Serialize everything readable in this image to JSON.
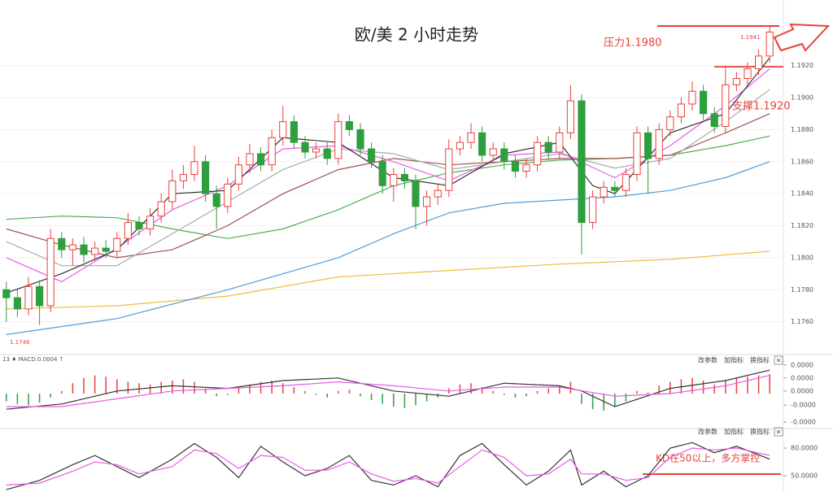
{
  "chart_data": [
    {
      "type": "candlestick",
      "title": "欧/美 2 小时走势",
      "annotations": [
        "压力1.1980",
        "支撑1.1920",
        "1.1941",
        "1.1746"
      ],
      "up_color": "#e8413c",
      "down_color": "#2e9e3e",
      "grid": true,
      "xlim": [
        -0.5,
        69.5
      ],
      "ylim": [
        1.174,
        1.1961
      ],
      "yticks": [
        {
          "value": 1.176,
          "label": "1.1760"
        },
        {
          "value": 1.178,
          "label": "1.1780"
        },
        {
          "value": 1.18,
          "label": "1.1800"
        },
        {
          "value": 1.182,
          "label": "1.1820"
        },
        {
          "value": 1.184,
          "label": "1.1840"
        },
        {
          "value": 1.186,
          "label": "1.1860"
        },
        {
          "value": 1.188,
          "label": "1.1880"
        },
        {
          "value": 1.19,
          "label": "1.1900"
        },
        {
          "value": 1.192,
          "label": "1.1920"
        }
      ],
      "open": [
        1.178,
        1.1775,
        1.1768,
        1.1782,
        1.177,
        1.1812,
        1.1805,
        1.1808,
        1.1802,
        1.1806,
        1.1804,
        1.1812,
        1.1822,
        1.1818,
        1.1826,
        1.1835,
        1.1848,
        1.1852,
        1.186,
        1.184,
        1.1832,
        1.1846,
        1.1858,
        1.1865,
        1.1858,
        1.1875,
        1.1885,
        1.1872,
        1.1866,
        1.1868,
        1.1862,
        1.1885,
        1.188,
        1.1868,
        1.186,
        1.1845,
        1.1852,
        1.1848,
        1.1832,
        1.1838,
        1.1842,
        1.1868,
        1.1872,
        1.1878,
        1.1864,
        1.1868,
        1.186,
        1.1854,
        1.1858,
        1.1872,
        1.1866,
        1.1878,
        1.1898,
        1.1822,
        1.1838,
        1.1844,
        1.1842,
        1.1852,
        1.1878,
        1.1862,
        1.188,
        1.1888,
        1.1896,
        1.1904,
        1.189,
        1.1882,
        1.1908,
        1.1912,
        1.1918,
        1.1926
      ],
      "high": [
        1.1785,
        1.178,
        1.1788,
        1.1786,
        1.1818,
        1.1816,
        1.1812,
        1.1813,
        1.181,
        1.1811,
        1.1816,
        1.1828,
        1.1826,
        1.1831,
        1.184,
        1.1855,
        1.1858,
        1.187,
        1.1864,
        1.1845,
        1.185,
        1.1863,
        1.1871,
        1.1869,
        1.188,
        1.1895,
        1.1889,
        1.1876,
        1.1872,
        1.1872,
        1.189,
        1.1889,
        1.1884,
        1.1872,
        1.1864,
        1.1856,
        1.1856,
        1.1852,
        1.1842,
        1.1846,
        1.1874,
        1.1876,
        1.1884,
        1.1882,
        1.1872,
        1.1872,
        1.1864,
        1.1862,
        1.1876,
        1.1876,
        1.1882,
        1.1908,
        1.1902,
        1.1842,
        1.1848,
        1.1848,
        1.1856,
        1.1882,
        1.1882,
        1.1884,
        1.1892,
        1.19,
        1.191,
        1.1908,
        1.1894,
        1.192,
        1.1916,
        1.1922,
        1.193,
        1.1945
      ],
      "low": [
        1.176,
        1.1763,
        1.1764,
        1.1758,
        1.1766,
        1.18,
        1.1795,
        1.1797,
        1.1798,
        1.18,
        1.18,
        1.1808,
        1.1814,
        1.1814,
        1.1822,
        1.183,
        1.1843,
        1.1848,
        1.1835,
        1.1818,
        1.1828,
        1.1842,
        1.1853,
        1.1854,
        1.1854,
        1.187,
        1.1868,
        1.1862,
        1.1862,
        1.1858,
        1.1858,
        1.1876,
        1.1864,
        1.1856,
        1.184,
        1.1835,
        1.1843,
        1.1818,
        1.182,
        1.1833,
        1.1838,
        1.1864,
        1.1868,
        1.186,
        1.186,
        1.1855,
        1.185,
        1.185,
        1.1854,
        1.1862,
        1.1862,
        1.1874,
        1.1802,
        1.1818,
        1.1834,
        1.1838,
        1.1838,
        1.1848,
        1.184,
        1.1858,
        1.1876,
        1.1884,
        1.1892,
        1.1886,
        1.1878,
        1.1878,
        1.1904,
        1.1908,
        1.1914,
        1.1922
      ],
      "close": [
        1.1775,
        1.1768,
        1.1782,
        1.177,
        1.1812,
        1.1805,
        1.1808,
        1.1802,
        1.1806,
        1.1804,
        1.1812,
        1.1822,
        1.1818,
        1.1826,
        1.1835,
        1.1848,
        1.1852,
        1.186,
        1.184,
        1.1832,
        1.1846,
        1.1858,
        1.1865,
        1.1858,
        1.1875,
        1.1885,
        1.1872,
        1.1866,
        1.1868,
        1.1862,
        1.1885,
        1.188,
        1.1868,
        1.186,
        1.1845,
        1.1852,
        1.1848,
        1.1832,
        1.1838,
        1.1842,
        1.1868,
        1.1872,
        1.1878,
        1.1864,
        1.1868,
        1.186,
        1.1854,
        1.1858,
        1.1872,
        1.1866,
        1.1878,
        1.1898,
        1.1822,
        1.1838,
        1.1844,
        1.1842,
        1.1852,
        1.1878,
        1.1862,
        1.188,
        1.1888,
        1.1896,
        1.1904,
        1.189,
        1.1882,
        1.1908,
        1.1912,
        1.1918,
        1.1926,
        1.1941
      ],
      "series": [
        {
          "color": "#f5b942",
          "x": [
            0,
            10,
            20,
            30,
            40,
            50,
            60,
            69
          ],
          "values": [
            1.1768,
            1.177,
            1.1776,
            1.1788,
            1.1792,
            1.1796,
            1.1799,
            1.1804
          ]
        },
        {
          "color": "#4a9ee0",
          "x": [
            0,
            10,
            20,
            30,
            35,
            40,
            45,
            50,
            55,
            60,
            65,
            69
          ],
          "values": [
            1.1752,
            1.1762,
            1.178,
            1.18,
            1.1815,
            1.1828,
            1.1834,
            1.1836,
            1.1838,
            1.1842,
            1.185,
            1.186
          ]
        },
        {
          "color": "#4caf50",
          "x": [
            0,
            5,
            10,
            15,
            20,
            25,
            30,
            35,
            40,
            45,
            50,
            55,
            60,
            65,
            69
          ],
          "values": [
            1.1824,
            1.1826,
            1.1825,
            1.1818,
            1.1812,
            1.1818,
            1.183,
            1.1845,
            1.1853,
            1.1858,
            1.1861,
            1.1862,
            1.1864,
            1.187,
            1.1876
          ]
        },
        {
          "color": "#a0524d",
          "x": [
            0,
            5,
            10,
            15,
            20,
            25,
            30,
            35,
            40,
            45,
            50,
            55,
            60,
            65,
            69
          ],
          "values": [
            1.1818,
            1.1808,
            1.18,
            1.1805,
            1.182,
            1.184,
            1.1855,
            1.1862,
            1.1858,
            1.186,
            1.1862,
            1.1862,
            1.1864,
            1.1878,
            1.189
          ]
        },
        {
          "color": "#aaaaaa",
          "x": [
            0,
            5,
            10,
            15,
            20,
            25,
            30,
            35,
            40,
            45,
            50,
            55,
            60,
            65,
            69
          ],
          "values": [
            1.181,
            1.1795,
            1.1795,
            1.1815,
            1.1835,
            1.1855,
            1.1868,
            1.1865,
            1.1855,
            1.186,
            1.1865,
            1.1856,
            1.1862,
            1.1885,
            1.1905
          ]
        },
        {
          "color": "#e65ce6",
          "x": [
            0,
            5,
            10,
            15,
            20,
            25,
            30,
            35,
            40,
            45,
            50,
            55,
            60,
            65,
            69
          ],
          "values": [
            1.18,
            1.1785,
            1.1806,
            1.183,
            1.1845,
            1.1868,
            1.187,
            1.186,
            1.1848,
            1.1864,
            1.1866,
            1.185,
            1.187,
            1.1895,
            1.1918
          ]
        },
        {
          "color": "#333333",
          "x": [
            0,
            5,
            10,
            15,
            20,
            25,
            30,
            35,
            40,
            45,
            50,
            53,
            55,
            60,
            65,
            69
          ],
          "values": [
            1.1778,
            1.179,
            1.1805,
            1.184,
            1.1842,
            1.1875,
            1.1872,
            1.185,
            1.1845,
            1.1865,
            1.1872,
            1.1845,
            1.184,
            1.1878,
            1.189,
            1.1925
          ]
        }
      ]
    },
    {
      "type": "macd",
      "header": "13 ♦ MACD:0.0004 ↑",
      "buttons": [
        "改参数",
        "加指标",
        "换指标",
        "×"
      ],
      "up_color": "#e8413c",
      "down_color": "#2e9e3e",
      "xlim": [
        -0.5,
        69.5
      ],
      "ylim": [
        -2.75e-05,
        2.75e-05
      ],
      "yticks": [
        {
          "value": 2.2e-05,
          "label": "0.0000"
        },
        {
          "value": 1.2e-05,
          "label": "0.0000"
        },
        {
          "value": 2e-06,
          "label": "0.0000"
        },
        {
          "value": -8.8e-06,
          "label": "-0.0000"
        },
        {
          "value": -2.19e-05,
          "label": "-0.0000"
        }
      ],
      "values": [
        -6e-06,
        -8e-06,
        -9e-06,
        -7e-06,
        -3e-06,
        2e-06,
        8e-06,
        1.2e-05,
        1.4e-05,
        1.3e-05,
        1.1e-05,
        9e-06,
        8e-06,
        7e-06,
        9e-06,
        1e-05,
        1.1e-05,
        9e-06,
        4e-06,
        -2e-06,
        -1e-06,
        4e-06,
        7e-06,
        9e-06,
        1e-05,
        8e-06,
        5e-06,
        2e-06,
        -1e-06,
        -3e-06,
        2e-06,
        3e-06,
        -2e-06,
        -5e-06,
        -8e-06,
        -1e-05,
        -1.1e-05,
        -9e-06,
        -6e-06,
        -3e-06,
        4e-06,
        7e-06,
        8e-06,
        5e-06,
        2e-06,
        -1e-06,
        -3e-06,
        -2e-06,
        2e-06,
        4e-06,
        6e-06,
        9e-06,
        -8e-06,
        -1.2e-05,
        -1.3e-05,
        -1e-05,
        -6e-06,
        2e-06,
        1e-06,
        6e-06,
        9e-06,
        1.1e-05,
        1.2e-05,
        1e-05,
        7e-06,
        1e-05,
        1.2e-05,
        1.3e-05,
        1.4e-05,
        1.5e-05
      ],
      "series": [
        {
          "color": "#333333",
          "x": [
            0,
            5,
            10,
            15,
            20,
            25,
            30,
            35,
            40,
            45,
            50,
            52,
            55,
            60,
            65,
            69
          ],
          "values": [
            -1.2e-05,
            -8e-06,
            2e-06,
            6e-06,
            4e-06,
            1e-05,
            1.2e-05,
            2e-06,
            -2e-06,
            8e-06,
            6e-06,
            2e-06,
            -1e-05,
            4e-06,
            1e-05,
            1.8e-05
          ]
        },
        {
          "color": "#e65ce6",
          "x": [
            0,
            5,
            10,
            15,
            20,
            25,
            30,
            35,
            40,
            45,
            50,
            55,
            60,
            65,
            69
          ],
          "values": [
            -1e-05,
            -1e-05,
            -4e-06,
            2e-06,
            4e-06,
            6e-06,
            9e-06,
            6e-06,
            2e-06,
            5e-06,
            5e-06,
            -2e-06,
            0,
            6e-06,
            1.4e-05
          ]
        }
      ]
    },
    {
      "type": "line",
      "buttons": [
        "改参数",
        "加指标",
        "换指标",
        "×"
      ],
      "annotation": "KD在50以上，多方掌控",
      "xlim": [
        -0.5,
        69.5
      ],
      "ylim": [
        32.4,
        100.3
      ],
      "yticks": [
        {
          "value": 80,
          "label": "80.0000"
        },
        {
          "value": 50,
          "label": "50.0000"
        }
      ],
      "series": [
        {
          "color": "#333333",
          "x": [
            0,
            3,
            6,
            8,
            10,
            12,
            15,
            17,
            19,
            21,
            23,
            25,
            27,
            29,
            31,
            33,
            35,
            37,
            39,
            41,
            43,
            45,
            47,
            49,
            51,
            52,
            54,
            56,
            58,
            60,
            62,
            64,
            66,
            69
          ],
          "values": [
            35,
            45,
            62,
            72,
            60,
            48,
            68,
            85,
            70,
            48,
            82,
            65,
            50,
            58,
            72,
            45,
            40,
            50,
            38,
            72,
            85,
            62,
            40,
            55,
            78,
            40,
            55,
            38,
            50,
            80,
            86,
            75,
            82,
            68
          ]
        },
        {
          "color": "#e65ce6",
          "x": [
            0,
            3,
            6,
            8,
            10,
            12,
            15,
            17,
            19,
            21,
            23,
            25,
            27,
            29,
            31,
            33,
            35,
            37,
            39,
            41,
            43,
            45,
            47,
            49,
            51,
            52,
            54,
            56,
            58,
            60,
            62,
            64,
            66,
            69
          ],
          "values": [
            40,
            42,
            55,
            65,
            62,
            52,
            60,
            78,
            74,
            58,
            72,
            70,
            56,
            56,
            65,
            52,
            44,
            47,
            42,
            60,
            78,
            70,
            50,
            52,
            68,
            52,
            52,
            45,
            48,
            70,
            80,
            78,
            80,
            72
          ]
        }
      ]
    }
  ]
}
